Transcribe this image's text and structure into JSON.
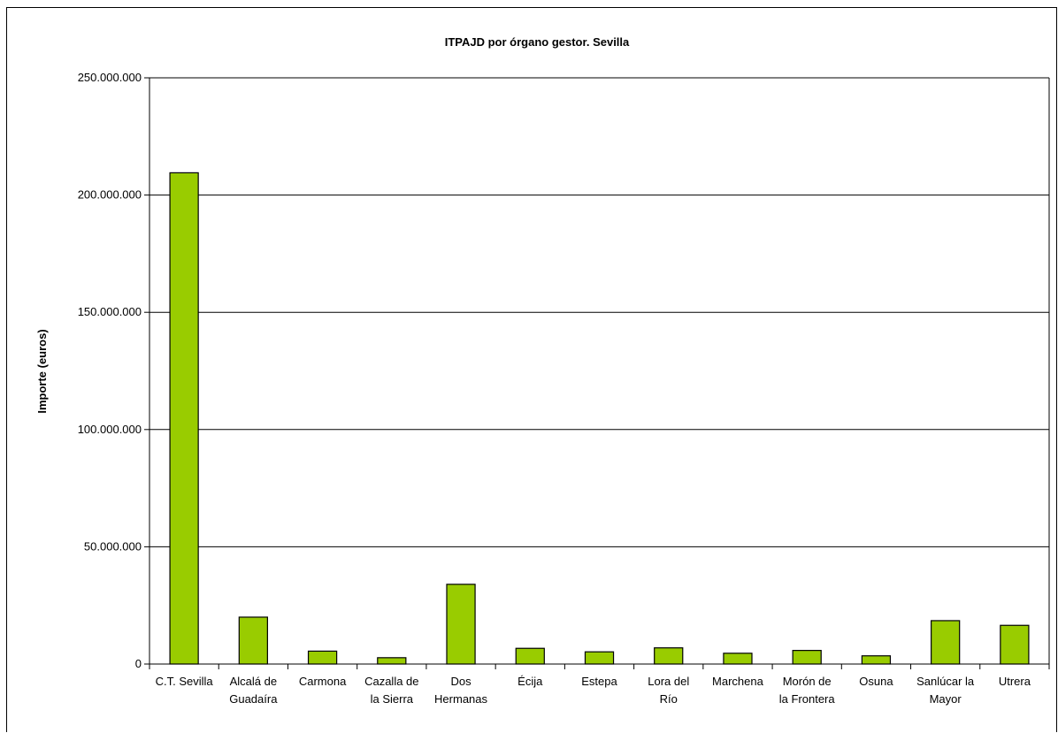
{
  "chart_data": {
    "type": "bar",
    "title": "ITPAJD por órgano gestor. Sevilla",
    "xlabel": "",
    "ylabel": "Importe (euros)",
    "ylim": [
      0,
      250000000
    ],
    "yticks": [
      0,
      50000000,
      100000000,
      150000000,
      200000000,
      250000000
    ],
    "ytick_labels": [
      "0",
      "50.000.000",
      "100.000.000",
      "150.000.000",
      "200.000.000",
      "250.000.000"
    ],
    "categories": [
      [
        "C.T. Sevilla"
      ],
      [
        "Alcalá de",
        "Guadaíra"
      ],
      [
        "Carmona"
      ],
      [
        "Cazalla de",
        "la Sierra"
      ],
      [
        "Dos",
        "Hermanas"
      ],
      [
        "Écija"
      ],
      [
        "Estepa"
      ],
      [
        "Lora del",
        "Río"
      ],
      [
        "Marchena"
      ],
      [
        "Morón de",
        "la Frontera"
      ],
      [
        "Osuna"
      ],
      [
        "Sanlúcar la",
        "Mayor"
      ],
      [
        "Utrera"
      ]
    ],
    "values": [
      209500000,
      20000000,
      5500000,
      2700000,
      34000000,
      6700000,
      5200000,
      6900000,
      4600000,
      5800000,
      3500000,
      18500000,
      16500000
    ],
    "grid": true,
    "legend": "none",
    "colors": {
      "bar_fill": "#99cc00",
      "bar_stroke": "#000000",
      "grid": "#000000"
    }
  }
}
